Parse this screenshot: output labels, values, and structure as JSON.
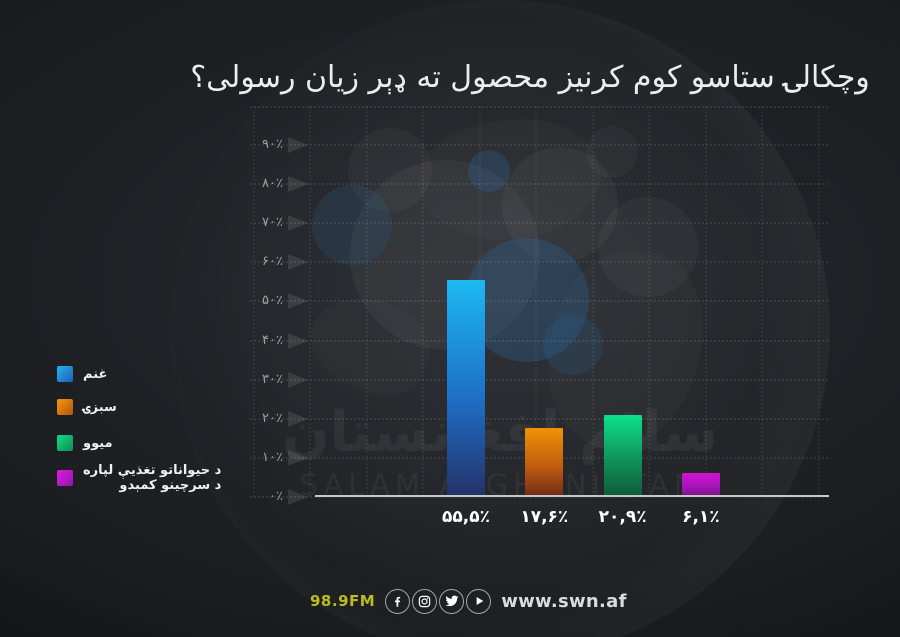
{
  "title": "وچکالۍ ستاسو کوم کرنیز محصول ته ډېر زیان رسولی؟",
  "chart_data": {
    "type": "bar",
    "title": "وچکالۍ ستاسو کوم کرنیز محصول ته ډېر زیان رسولی؟",
    "categories": [
      "غنم",
      "سبزۍ",
      "میوو",
      "د حیواناتو تغذیې لپاره د سرچینو کمېدو"
    ],
    "values": [
      55.5,
      17.6,
      20.9,
      6.1
    ],
    "value_labels": [
      "۵۵,۵٪",
      "۱۷,۶٪",
      "۲۰,۹٪",
      "۶,۱٪"
    ],
    "y_ticks_top_down": [
      "۹۰٪",
      "۸۰٪",
      "۷۰٪",
      "۶۰٪",
      "۵۰٪",
      "۴۰٪",
      "۳۰٪",
      "۲۰٪",
      "۱۰٪",
      "۰٪"
    ],
    "ylim": [
      0,
      90
    ],
    "grid": true,
    "legend_position": "left",
    "bar_gradients": [
      [
        "#1cb9f2",
        "#1e6ec6",
        "#243168"
      ],
      [
        "#f19204",
        "#c05d0e",
        "#6e2b15"
      ],
      [
        "#0ce08a",
        "#11915a",
        "#0e5a39"
      ],
      [
        "#d313d3",
        "#a914b8",
        "#711687"
      ]
    ]
  },
  "legend": {
    "items": [
      {
        "label_lines": [
          "غنم"
        ],
        "gradient": [
          "#27b3ea",
          "#1a5fc0"
        ]
      },
      {
        "label_lines": [
          "سبزۍ"
        ],
        "gradient": [
          "#f39a10",
          "#b35308"
        ]
      },
      {
        "label_lines": [
          "میوو"
        ],
        "gradient": [
          "#10dd82",
          "#0c8e53"
        ]
      },
      {
        "label_lines": [
          "د حیواناتو تغذیې لپاره",
          "د سرچینو کمېدو"
        ],
        "gradient": [
          "#df1cdf",
          "#8d18ae"
        ]
      }
    ]
  },
  "watermark": {
    "arabic": "سلام افغانستان",
    "latin": "SALAM AFGHANISTAN"
  },
  "footer": {
    "radio_label": "98.9FM",
    "icons": [
      "facebook-icon",
      "instagram-icon",
      "twitter-icon",
      "play-icon"
    ],
    "website": "www.swn.af"
  },
  "colors": {
    "background": "#1c1e22",
    "radio_yellow": "#bcbd20",
    "axis_line": "#c6c7c8",
    "title_text": "#eceded"
  }
}
